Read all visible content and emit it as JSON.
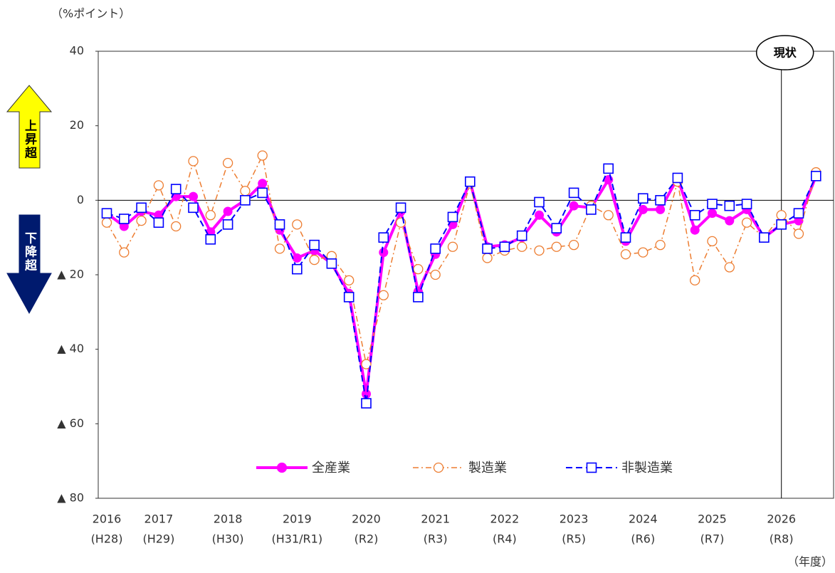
{
  "chart_data": {
    "type": "line",
    "unit_label": "（%ポイント）",
    "x_unit_label": "（年度）",
    "categories": [
      "2016",
      null,
      null,
      "2017",
      null,
      null,
      null,
      "2018",
      null,
      null,
      null,
      "2019",
      null,
      null,
      null,
      "2020",
      null,
      null,
      null,
      "2021",
      null,
      null,
      null,
      "2022",
      null,
      null,
      null,
      "2023",
      null,
      null,
      null,
      "2024",
      null,
      null,
      null,
      "2025",
      null,
      null,
      null,
      "2026",
      null,
      null
    ],
    "category_sublabels": [
      "(H28)",
      null,
      null,
      "(H29)",
      null,
      null,
      null,
      "(H30)",
      null,
      null,
      null,
      "(H31/R1)",
      null,
      null,
      null,
      "(R2)",
      null,
      null,
      null,
      "(R3)",
      null,
      null,
      null,
      "(R4)",
      null,
      null,
      null,
      "(R5)",
      null,
      null,
      null,
      "(R6)",
      null,
      null,
      null,
      "(R7)",
      null,
      null,
      null,
      "(R8)",
      null,
      null
    ],
    "series": [
      {
        "name": "全産業",
        "color": "#ff00ff",
        "line_style": "solid",
        "marker": "circle-filled",
        "values": [
          -3.5,
          -7,
          -3,
          -4,
          1,
          1,
          -8.5,
          -3,
          0,
          4.5,
          -8,
          -15.5,
          -13.5,
          -17,
          -25,
          -52,
          -14,
          -3,
          -24.5,
          -14.5,
          -6.5,
          5,
          -12.5,
          -12,
          -10,
          -4,
          -8.5,
          -1.5,
          -2,
          5.5,
          -11,
          -2.5,
          -2.5,
          6,
          -8,
          -3.5,
          -5.5,
          -2.5,
          -10,
          -6.5,
          -5.5,
          6.5
        ]
      },
      {
        "name": "製造業",
        "color": "#ed7d31",
        "line_style": "dashdot",
        "marker": "circle-open",
        "values": [
          -6,
          -14,
          -5.5,
          4,
          -7,
          10.5,
          -4,
          10,
          2.5,
          12,
          -13,
          -6.5,
          -16,
          -15,
          -21.5,
          -44,
          -25.5,
          -6,
          -18.5,
          -20,
          -12.5,
          4.5,
          -15.5,
          -13.5,
          -12.5,
          -13.5,
          -12.5,
          -12,
          -1.5,
          -4,
          -14.5,
          -14,
          -12,
          5,
          -21.5,
          -11,
          -18,
          -6,
          -10,
          -4,
          -9,
          7.5
        ]
      },
      {
        "name": "非製造業",
        "color": "#0000ff",
        "line_style": "dashed",
        "marker": "square-open",
        "values": [
          -3.5,
          -5,
          -2,
          -6,
          3,
          -2,
          -10.5,
          -6.5,
          0,
          2,
          -6.5,
          -18.5,
          -12,
          -17,
          -26,
          -54.5,
          -10,
          -2,
          -26,
          -13,
          -4.5,
          5,
          -13,
          -12.5,
          -9.5,
          -0.5,
          -7.5,
          2,
          -2.5,
          8.5,
          -10,
          0.5,
          0,
          6,
          -4,
          -1,
          -1.5,
          -1,
          -10,
          -6.5,
          -3.5,
          6.5
        ]
      }
    ],
    "ylim": [
      -80,
      40
    ],
    "yticks": [
      {
        "value": -80,
        "label": "▲ 80"
      },
      {
        "value": -60,
        "label": "▲ 60"
      },
      {
        "value": -40,
        "label": "▲ 40"
      },
      {
        "value": -20,
        "label": "▲ 20"
      },
      0,
      20,
      40
    ],
    "zero_line": true,
    "grid": false,
    "legend": "bottom",
    "annotation": {
      "label": "現状",
      "at": "2026"
    },
    "side_labels": {
      "up": "上昇超",
      "down": "下降超"
    }
  }
}
